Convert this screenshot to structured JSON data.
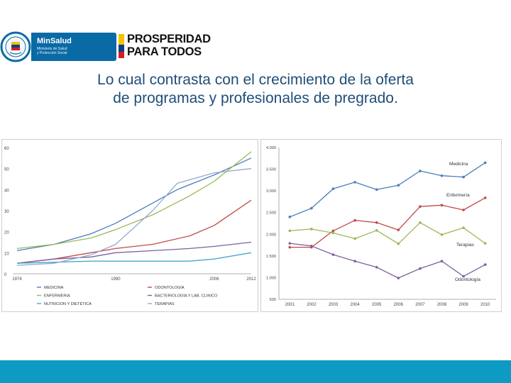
{
  "header": {
    "minsalud_title": "MinSalud",
    "minsalud_subtitle_1": "Ministerio de Salud",
    "minsalud_subtitle_2": "y Protección Social",
    "prosperidad_line1": "PROSPERIDAD",
    "prosperidad_line2": "PARA TODOS"
  },
  "slide": {
    "title_line1": "Lo cual contrasta con el crecimiento de la oferta",
    "title_line2": "de programas y profesionales de pregrado."
  },
  "colors": {
    "title": "#1f4e79",
    "footer": "#0d9bc3",
    "minsalud": "#0a6aa6"
  },
  "chart_data": [
    {
      "type": "line",
      "x": [
        "1974",
        "1990",
        "2006",
        "2012"
      ],
      "ylim": [
        0,
        60
      ],
      "yticks": [
        0,
        10,
        20,
        30,
        40,
        50,
        60
      ],
      "legend_position": "bottom",
      "series": [
        {
          "name": "MEDICINA",
          "color": "#4a7ebb",
          "points": [
            [
              1974,
              11
            ],
            [
              1980,
              14
            ],
            [
              1986,
              19
            ],
            [
              1990,
              24
            ],
            [
              1995,
              32
            ],
            [
              2000,
              40
            ],
            [
              2006,
              47
            ],
            [
              2012,
              55
            ]
          ]
        },
        {
          "name": "ODONTOLOGÍA",
          "color": "#be4b48",
          "points": [
            [
              1974,
              5
            ],
            [
              1980,
              7
            ],
            [
              1986,
              10
            ],
            [
              1990,
              12
            ],
            [
              1996,
              14
            ],
            [
              2002,
              18
            ],
            [
              2006,
              23
            ],
            [
              2012,
              35
            ]
          ]
        },
        {
          "name": "ENFERMERIA",
          "color": "#98b954",
          "points": [
            [
              1974,
              12
            ],
            [
              1980,
              14
            ],
            [
              1986,
              17
            ],
            [
              1990,
              21
            ],
            [
              1996,
              28
            ],
            [
              2002,
              37
            ],
            [
              2006,
              44
            ],
            [
              2012,
              58
            ]
          ]
        },
        {
          "name": "BACTERIOLOGÍA  Y LAB. CLINICO",
          "color": "#7d60a0",
          "points": [
            [
              1974,
              5
            ],
            [
              1980,
              7
            ],
            [
              1986,
              8
            ],
            [
              1990,
              10
            ],
            [
              1996,
              11
            ],
            [
              2002,
              12
            ],
            [
              2006,
              13
            ],
            [
              2012,
              15
            ]
          ]
        },
        {
          "name": "NUTRICION Y DIETÉTICA",
          "color": "#46aac5",
          "points": [
            [
              1974,
              5
            ],
            [
              1980,
              5.5
            ],
            [
              1986,
              6
            ],
            [
              1990,
              6
            ],
            [
              1996,
              6
            ],
            [
              2002,
              6
            ],
            [
              2006,
              7
            ],
            [
              2012,
              10
            ]
          ]
        },
        {
          "name": "TERAPIAS",
          "color": "#93a9cf",
          "points": [
            [
              1974,
              4
            ],
            [
              1980,
              5
            ],
            [
              1986,
              9
            ],
            [
              1990,
              14
            ],
            [
              1996,
              30
            ],
            [
              2000,
              43
            ],
            [
              2006,
              48
            ],
            [
              2012,
              50
            ]
          ]
        }
      ]
    },
    {
      "type": "line",
      "x": [
        "2001",
        "2002",
        "2003",
        "2004",
        "2005",
        "2006",
        "2007",
        "2008",
        "2009",
        "2010"
      ],
      "ylim": [
        500,
        4000
      ],
      "yticks": [
        "500",
        "1.000",
        "1.500",
        "2.000",
        "2.500",
        "3.000",
        "3.500",
        "4.000"
      ],
      "series": [
        {
          "name": "Medicina",
          "color": "#4a7ebb",
          "values": [
            2400,
            2600,
            3050,
            3200,
            3030,
            3130,
            3460,
            3350,
            3320,
            3650
          ]
        },
        {
          "name": "Enfermería",
          "color": "#be4b48",
          "values": [
            1700,
            1700,
            2080,
            2320,
            2270,
            2100,
            2640,
            2670,
            2560,
            2840
          ]
        },
        {
          "name": "Terapias",
          "color": "#98b954",
          "values": [
            2080,
            2120,
            2030,
            1900,
            2090,
            1780,
            2270,
            1990,
            2150,
            1790
          ]
        },
        {
          "name": "Odontología",
          "color": "#7d60a0",
          "values": [
            1790,
            1730,
            1530,
            1380,
            1240,
            990,
            1210,
            1380,
            1030,
            1300
          ]
        }
      ]
    }
  ]
}
